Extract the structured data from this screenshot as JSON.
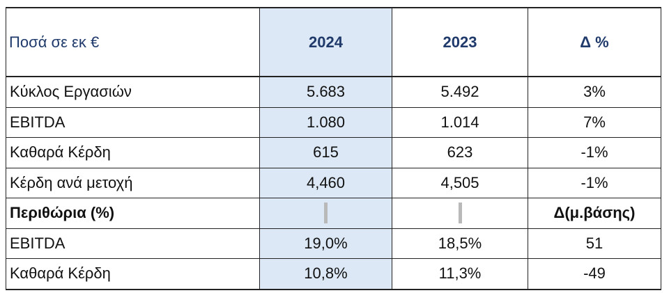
{
  "table": {
    "header": {
      "label": "Ποσά σε εκ €",
      "y2024": "2024",
      "y2023": "2023",
      "delta": "Δ %"
    },
    "rows": [
      {
        "label": "Κύκλος Εργασιών",
        "y2024": "5.683",
        "y2023": "5.492",
        "delta": "3%"
      },
      {
        "label": "EBITDA",
        "y2024": "1.080",
        "y2023": "1.014",
        "delta": "7%"
      },
      {
        "label": "Καθαρά Κέρδη",
        "y2024": "615",
        "y2023": "623",
        "delta": "-1%"
      },
      {
        "label": "Κέρδη ανά μετοχή",
        "y2024": "4,460",
        "y2023": "4,505",
        "delta": "-1%"
      }
    ],
    "section": {
      "label": "Περιθώρια (%)",
      "delta": "Δ(μ.βάσης)"
    },
    "margin_rows": [
      {
        "label": "EBITDA",
        "y2024": "19,0%",
        "y2023": "18,5%",
        "delta": "51"
      },
      {
        "label": "Καθαρά Κέρδη",
        "y2024": "10,8%",
        "y2023": "11,3%",
        "delta": "-49"
      }
    ]
  },
  "colors": {
    "header_text": "#1f3a6b",
    "highlight_column": "#dce8f5",
    "marker": "#b9b9b9"
  }
}
